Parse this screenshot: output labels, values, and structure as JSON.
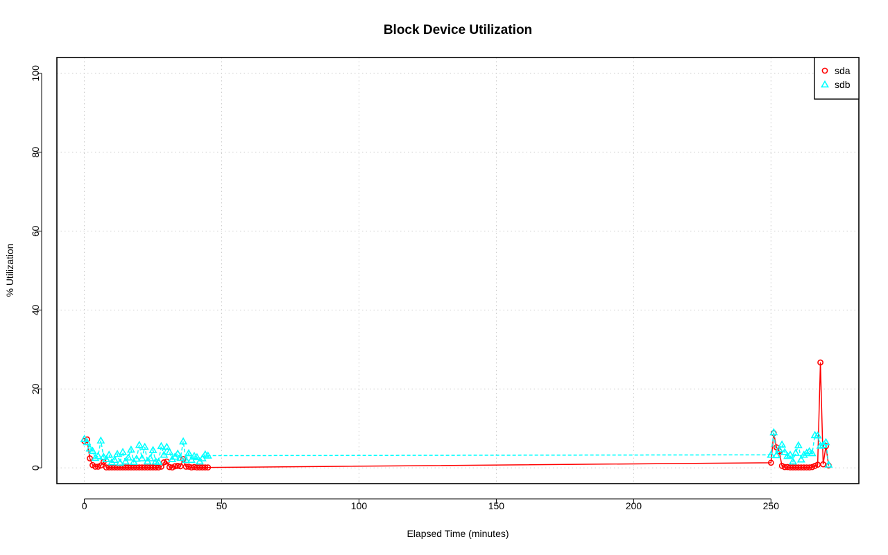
{
  "chart_data": {
    "type": "line",
    "title": "Block Device Utilization",
    "xlabel": "Elapsed Time (minutes)",
    "ylabel": "% Utilization",
    "xlim": [
      -10,
      282
    ],
    "ylim": [
      -4,
      104
    ],
    "xticks": [
      0,
      50,
      100,
      150,
      200,
      250
    ],
    "yticks": [
      0,
      20,
      40,
      60,
      80,
      100
    ],
    "grid": true,
    "legend_position": "top-right",
    "series": [
      {
        "name": "sda",
        "color": "#ff0000",
        "marker": "circle",
        "line_style": "solid",
        "x": [
          0,
          1,
          2,
          3,
          4,
          5,
          6,
          7,
          8,
          9,
          10,
          11,
          12,
          13,
          14,
          15,
          16,
          17,
          18,
          19,
          20,
          21,
          22,
          23,
          24,
          25,
          26,
          27,
          28,
          29,
          30,
          31,
          32,
          33,
          34,
          35,
          36,
          37,
          38,
          39,
          40,
          41,
          42,
          43,
          44,
          45,
          250,
          251,
          252,
          253,
          254,
          255,
          256,
          257,
          258,
          259,
          260,
          261,
          262,
          263,
          264,
          265,
          266,
          267,
          268,
          269,
          270,
          271
        ],
        "y": [
          6.8,
          7.2,
          2.4,
          0.7,
          0.3,
          0.3,
          0.6,
          1.5,
          0.1,
          0.1,
          0.1,
          0.1,
          0.1,
          0.1,
          0.1,
          0.1,
          0.1,
          0.1,
          0.1,
          0.1,
          0.1,
          0.1,
          0.1,
          0.1,
          0.1,
          0.1,
          0.1,
          0.1,
          0.3,
          1.4,
          1.6,
          0.2,
          0.1,
          0.4,
          0.5,
          0.4,
          2.2,
          0.3,
          0.3,
          0.1,
          0.2,
          0.1,
          0.1,
          0.1,
          0.1,
          0.1,
          1.3,
          8.8,
          5.2,
          4.2,
          0.5,
          0.2,
          0.2,
          0.1,
          0.1,
          0.1,
          0.1,
          0.1,
          0.1,
          0.1,
          0.1,
          0.2,
          0.5,
          0.8,
          26.7,
          0.9,
          5.5,
          0.6
        ]
      },
      {
        "name": "sdb",
        "color": "#00ffff",
        "marker": "triangle",
        "line_style": "dashed",
        "x": [
          0,
          1,
          2,
          3,
          4,
          5,
          6,
          7,
          8,
          9,
          10,
          11,
          12,
          13,
          14,
          15,
          16,
          17,
          18,
          19,
          20,
          21,
          22,
          23,
          24,
          25,
          26,
          27,
          28,
          29,
          30,
          31,
          32,
          33,
          34,
          35,
          36,
          37,
          38,
          39,
          40,
          41,
          42,
          43,
          44,
          45,
          250,
          251,
          252,
          253,
          254,
          255,
          256,
          257,
          258,
          259,
          260,
          261,
          262,
          263,
          264,
          265,
          266,
          267,
          268,
          269,
          270,
          271
        ],
        "y": [
          7.3,
          6.5,
          4.9,
          4.3,
          2.5,
          3.0,
          6.9,
          2.8,
          2.2,
          3.3,
          1.4,
          2.0,
          3.5,
          1.3,
          4.0,
          1.6,
          2.6,
          4.6,
          1.5,
          2.3,
          5.8,
          2.4,
          5.3,
          1.6,
          2.4,
          4.5,
          1.6,
          1.5,
          5.5,
          3.3,
          5.3,
          4.0,
          2.2,
          2.8,
          3.6,
          2.5,
          6.7,
          2.0,
          3.7,
          2.0,
          3.0,
          2.7,
          1.6,
          2.4,
          3.4,
          3.1,
          3.3,
          9.0,
          3.2,
          4.7,
          5.9,
          4.0,
          3.0,
          3.3,
          1.6,
          3.8,
          5.7,
          2.1,
          3.3,
          3.8,
          4.2,
          3.7,
          8.3,
          8.2,
          5.6,
          5.8,
          6.5,
          0.8
        ]
      }
    ]
  }
}
